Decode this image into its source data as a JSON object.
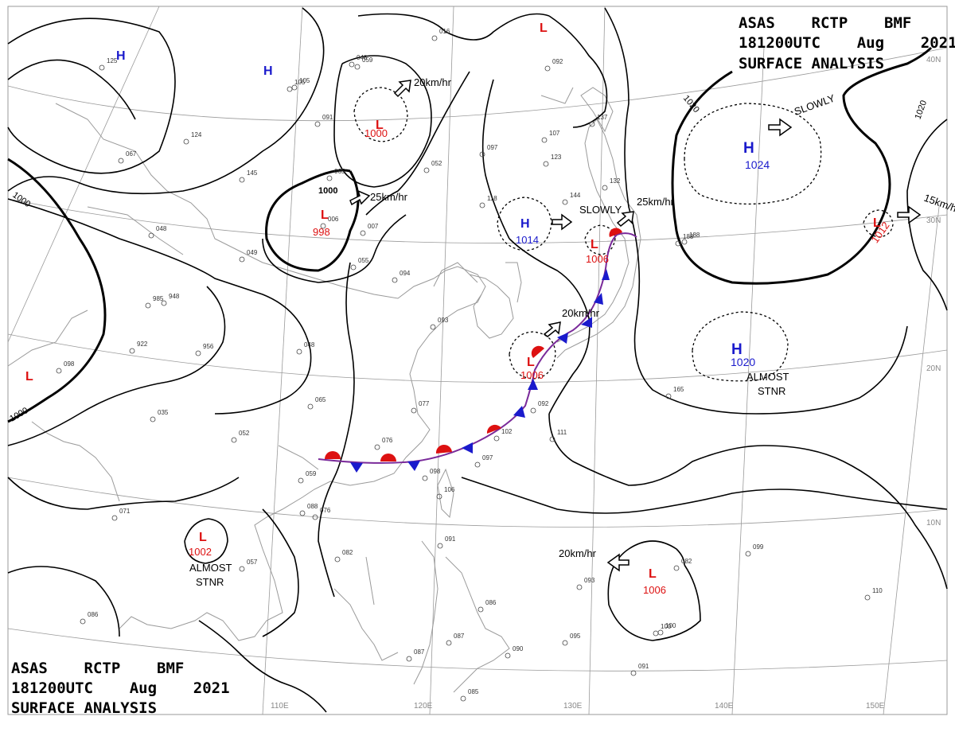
{
  "header_top": {
    "line1": "ASAS    RCTP    BMF",
    "line2": "181200UTC    Aug    2021",
    "line3": "SURFACE ANALYSIS"
  },
  "header_bottom": {
    "line1": "ASAS    RCTP    BMF",
    "line2": "181200UTC    Aug    2021",
    "line3": "SURFACE ANALYSIS"
  },
  "longitude_labels": [
    "110E",
    "120E",
    "130E",
    "140E",
    "150E"
  ],
  "latitude_labels": [
    "40N",
    "30N",
    "20N",
    "10N"
  ],
  "isobar_labels": [
    "1000",
    "1000",
    "1000",
    "1000",
    "1020",
    "1020"
  ],
  "pressure_systems": [
    {
      "type": "H",
      "value": "",
      "color": "#1a1acc"
    },
    {
      "type": "H",
      "value": "",
      "color": "#1a1acc"
    },
    {
      "type": "L",
      "value": "1000",
      "color": "#dd1111"
    },
    {
      "type": "L",
      "value": "998",
      "color": "#dd1111"
    },
    {
      "type": "H",
      "value": "1014",
      "color": "#1a1acc"
    },
    {
      "type": "L",
      "value": "1006",
      "color": "#dd1111"
    },
    {
      "type": "L",
      "value": "1006",
      "color": "#dd1111"
    },
    {
      "type": "H",
      "value": "1024",
      "color": "#1a1acc"
    },
    {
      "type": "L",
      "value": "1012",
      "color": "#dd1111"
    },
    {
      "type": "H",
      "value": "1020",
      "color": "#1a1acc"
    },
    {
      "type": "L",
      "value": "",
      "color": "#dd1111"
    },
    {
      "type": "L",
      "value": "1002",
      "color": "#dd1111"
    },
    {
      "type": "L",
      "value": "1006",
      "color": "#dd1111"
    },
    {
      "type": "L",
      "value": "",
      "color": "#dd1111"
    }
  ],
  "motion_labels": [
    "20km/hr",
    "25km/hr",
    "SLOWLY",
    "25km/hr",
    "20km/hr",
    "SLOWLY",
    "15km/hr",
    "20km/hr"
  ],
  "stationary_notes": [
    {
      "line1": "ALMOST",
      "line2": "STNR"
    },
    {
      "line1": "ALMOST",
      "line2": "STNR"
    }
  ],
  "station_values": [
    "016",
    "048",
    "059",
    "105",
    "091",
    "124",
    "145",
    "065",
    "006",
    "007",
    "055",
    "049",
    "048",
    "098",
    "052",
    "118",
    "107",
    "144",
    "137",
    "097",
    "123",
    "092",
    "132",
    "188",
    "094",
    "948",
    "922",
    "956",
    "048",
    "065",
    "035",
    "052",
    "077",
    "093",
    "076",
    "098",
    "097",
    "102",
    "111",
    "092",
    "165",
    "059",
    "088",
    "106",
    "076",
    "071",
    "082",
    "057",
    "091",
    "086",
    "087",
    "090",
    "095",
    "093",
    "082",
    "099",
    "110",
    "100",
    "091",
    "085",
    "087",
    "086",
    "105",
    "067",
    "125",
    "985",
    "188",
    "100"
  ],
  "colors": {
    "high": "#1a1acc",
    "low": "#dd1111",
    "cold_front": "#1a1acc",
    "warm_front": "#dd1111",
    "coast": "#9a9a9a",
    "isobar": "#000000"
  }
}
